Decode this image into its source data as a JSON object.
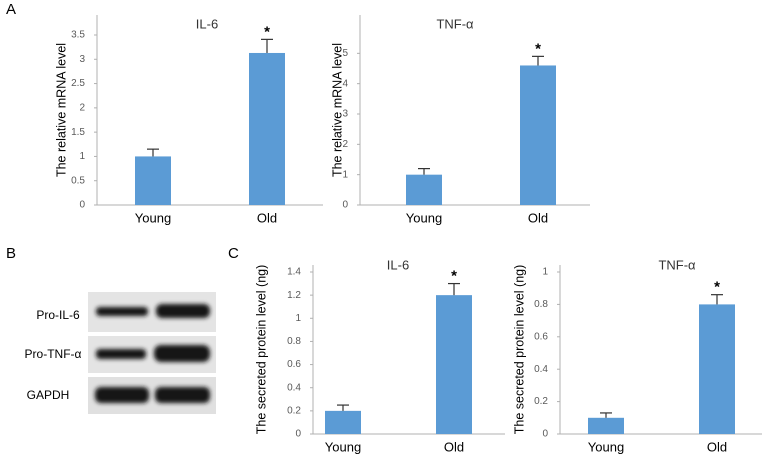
{
  "panels": [
    "A",
    "B",
    "C"
  ],
  "blot": {
    "labels": [
      "Pro-IL-6",
      "Pro-TNF-α",
      "GAPDH"
    ]
  },
  "chart_data": [
    {
      "type": "bar",
      "title": "IL-6",
      "y_label": "The relative mRNA level",
      "categories": [
        "Young",
        "Old"
      ],
      "values": [
        1,
        3.13
      ],
      "errors": [
        0.15,
        0.28
      ],
      "color": "#5b9bd5",
      "ylim": [
        0,
        3.5
      ],
      "yticks": [
        0,
        0.5,
        1,
        1.5,
        2,
        2.5,
        3,
        3.5
      ],
      "annotations": [
        {
          "text": "*",
          "x": "Old"
        }
      ]
    },
    {
      "type": "bar",
      "title": "TNF-α",
      "y_label": "The relative mRNA level",
      "categories": [
        "Young",
        "Old"
      ],
      "values": [
        1,
        4.6
      ],
      "errors": [
        0.2,
        0.3
      ],
      "color": "#5b9bd5",
      "ylim": [
        0,
        6
      ],
      "yticks": [
        0,
        1,
        2,
        3,
        4,
        5
      ],
      "annotations": [
        {
          "text": "*",
          "x": "Old"
        }
      ]
    },
    {
      "type": "bar",
      "title": "IL-6",
      "y_label": "The secreted protein level (ng)",
      "categories": [
        "Young",
        "Old"
      ],
      "values": [
        0.2,
        1.2
      ],
      "errors": [
        0.05,
        0.1
      ],
      "color": "#5b9bd5",
      "ylim": [
        0,
        1.4
      ],
      "yticks": [
        0,
        0.2,
        0.4,
        0.6,
        0.8,
        1,
        1.2,
        1.4
      ],
      "annotations": [
        {
          "text": "*",
          "x": "Old"
        }
      ]
    },
    {
      "type": "bar",
      "title": "TNF-α",
      "y_label": "The secreted protein level (ng)",
      "categories": [
        "Young",
        "Old"
      ],
      "values": [
        0.1,
        0.8
      ],
      "errors": [
        0.03,
        0.06
      ],
      "color": "#5b9bd5",
      "ylim": [
        0,
        1
      ],
      "yticks": [
        0,
        0.2,
        0.4,
        0.6,
        0.8,
        1
      ],
      "annotations": [
        {
          "text": "*",
          "x": "Old"
        }
      ]
    }
  ]
}
